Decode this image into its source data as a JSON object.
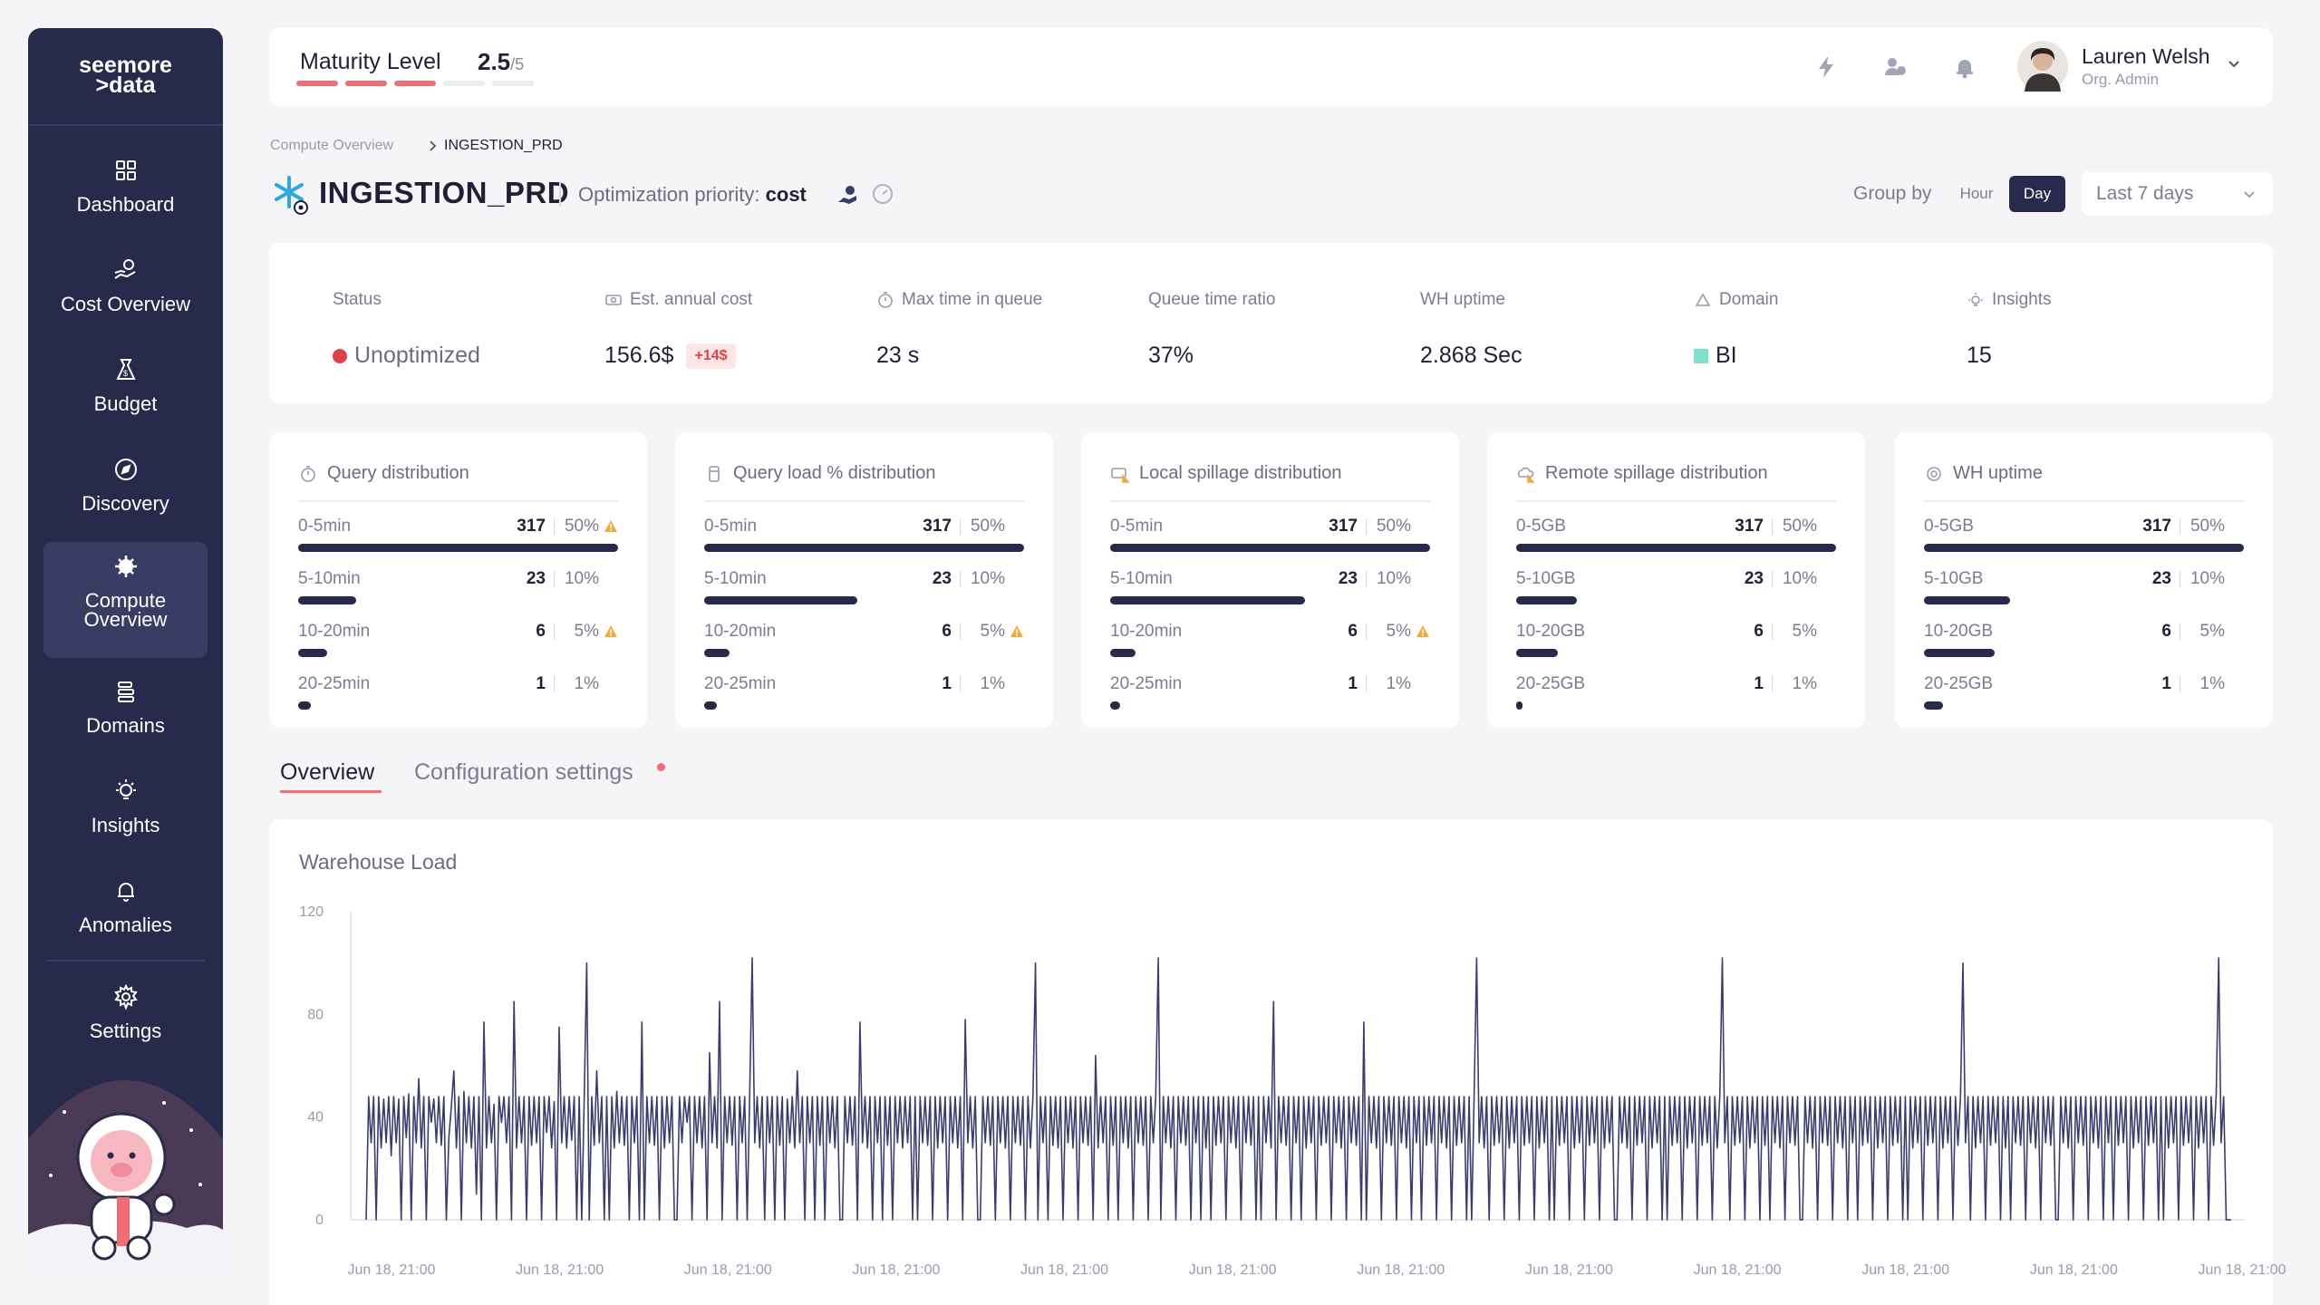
{
  "brand": {
    "line1": "seemore",
    "line2": ">data"
  },
  "sidebar": {
    "items": [
      {
        "label": "Dashboard",
        "icon": "dashboard-icon"
      },
      {
        "label": "Cost Overview",
        "icon": "cost-icon"
      },
      {
        "label": "Budget",
        "icon": "budget-icon"
      },
      {
        "label": "Discovery",
        "icon": "compass-icon"
      },
      {
        "label": "Compute Overview",
        "icon": "compute-icon",
        "active": true
      },
      {
        "label": "Domains",
        "icon": "domains-icon"
      },
      {
        "label": "Insights",
        "icon": "lightbulb-icon"
      },
      {
        "label": "Anomalies",
        "icon": "bell-icon"
      },
      {
        "label": "Settings",
        "icon": "gear-icon"
      }
    ]
  },
  "topbar": {
    "maturity_label": "Maturity Level",
    "maturity_value": "2.5",
    "maturity_max": "/5",
    "maturity_level": 2.5,
    "user_name": "Lauren Welsh",
    "user_role": "Org. Admin"
  },
  "breadcrumb": {
    "parent": "Compute Overview",
    "current": "INGESTION_PRD"
  },
  "header": {
    "title": "INGESTION_PRD",
    "priority_label": "Optimization priority:",
    "priority_value": "cost",
    "group_by_label": "Group by",
    "group_hour": "Hour",
    "group_day": "Day",
    "range": "Last 7 days"
  },
  "stats": [
    {
      "label": "Status",
      "value": "Unoptimized"
    },
    {
      "label": "Est. annual cost",
      "value": "156.6$",
      "badge": "+14$"
    },
    {
      "label": "Max time in queue",
      "value": "23 s"
    },
    {
      "label": "Queue time ratio",
      "value": "37%"
    },
    {
      "label": "WH uptime",
      "value": "2.868 Sec"
    },
    {
      "label": "Domain",
      "value": "BI"
    },
    {
      "label": "Insights",
      "value": "15"
    }
  ],
  "cards": [
    {
      "title": "Query distribution",
      "rows": [
        {
          "label": "0-5min",
          "count": "317",
          "pct": "50%",
          "warn": true,
          "fill": 1.0
        },
        {
          "label": "5-10min",
          "count": "23",
          "pct": "10%",
          "warn": false,
          "fill": 0.18
        },
        {
          "label": "10-20min",
          "count": "6",
          "pct": "5%",
          "warn": true,
          "fill": 0.09
        },
        {
          "label": "20-25min",
          "count": "1",
          "pct": "1%",
          "warn": false,
          "fill": 0.04
        }
      ]
    },
    {
      "title": "Query load % distribution",
      "rows": [
        {
          "label": "0-5min",
          "count": "317",
          "pct": "50%",
          "warn": false,
          "fill": 1.0
        },
        {
          "label": "5-10min",
          "count": "23",
          "pct": "10%",
          "warn": false,
          "fill": 0.48
        },
        {
          "label": "10-20min",
          "count": "6",
          "pct": "5%",
          "warn": true,
          "fill": 0.08
        },
        {
          "label": "20-25min",
          "count": "1",
          "pct": "1%",
          "warn": false,
          "fill": 0.04
        }
      ]
    },
    {
      "title": "Local spillage distribution",
      "rows": [
        {
          "label": "0-5min",
          "count": "317",
          "pct": "50%",
          "warn": false,
          "fill": 1.0
        },
        {
          "label": "5-10min",
          "count": "23",
          "pct": "10%",
          "warn": false,
          "fill": 0.61
        },
        {
          "label": "10-20min",
          "count": "6",
          "pct": "5%",
          "warn": true,
          "fill": 0.08
        },
        {
          "label": "20-25min",
          "count": "1",
          "pct": "1%",
          "warn": false,
          "fill": 0.03
        }
      ]
    },
    {
      "title": "Remote spillage distribution",
      "rows": [
        {
          "label": "0-5GB",
          "count": "317",
          "pct": "50%",
          "warn": false,
          "fill": 1.0
        },
        {
          "label": "5-10GB",
          "count": "23",
          "pct": "10%",
          "warn": false,
          "fill": 0.19
        },
        {
          "label": "10-20GB",
          "count": "6",
          "pct": "5%",
          "warn": false,
          "fill": 0.13
        },
        {
          "label": "20-25GB",
          "count": "1",
          "pct": "1%",
          "warn": false,
          "fill": 0.02
        }
      ]
    },
    {
      "title": "WH uptime",
      "rows": [
        {
          "label": "0-5GB",
          "count": "317",
          "pct": "50%",
          "warn": false,
          "fill": 1.0
        },
        {
          "label": "5-10GB",
          "count": "23",
          "pct": "10%",
          "warn": false,
          "fill": 0.27
        },
        {
          "label": "10-20GB",
          "count": "6",
          "pct": "5%",
          "warn": false,
          "fill": 0.22
        },
        {
          "label": "20-25GB",
          "count": "1",
          "pct": "1%",
          "warn": false,
          "fill": 0.06
        }
      ]
    }
  ],
  "tabs": {
    "overview": "Overview",
    "config": "Configuration settings"
  },
  "chart_data": {
    "type": "line",
    "title": "Warehouse Load",
    "ylim": [
      0,
      120
    ],
    "yticks": [
      0,
      40,
      80,
      120
    ],
    "x_tick_labels": [
      "Jun 18, 21:00",
      "Jun 18, 21:00",
      "Jun 18, 21:00",
      "Jun 18, 21:00",
      "Jun 18, 21:00",
      "Jun 18, 21:00",
      "Jun 18, 21:00",
      "Jun 18, 21:00",
      "Jun 18, 21:00",
      "Jun 18, 21:00",
      "Jun 18, 21:00",
      "Jun 18, 21:00"
    ],
    "series": [
      {
        "color": "#3b3c6e",
        "values": [
          0,
          48,
          30,
          48,
          0,
          48,
          28,
          47,
          30,
          48,
          25,
          48,
          30,
          47,
          0,
          48,
          32,
          49,
          0,
          48,
          30,
          55,
          28,
          48,
          0,
          48,
          38,
          47,
          30,
          48,
          29,
          48,
          0,
          32,
          44,
          58,
          28,
          48,
          0,
          50,
          30,
          48,
          28,
          48,
          10,
          48,
          0,
          77,
          28,
          48,
          30,
          45,
          0,
          48,
          38,
          48,
          30,
          48,
          0,
          85,
          28,
          48,
          30,
          48,
          0,
          48,
          29,
          48,
          30,
          48,
          0,
          48,
          34,
          48,
          28,
          46,
          0,
          75,
          30,
          48,
          28,
          48,
          31,
          48,
          0,
          48,
          0,
          48,
          100,
          0,
          48,
          29,
          58,
          30,
          48,
          0,
          48,
          0,
          48,
          28,
          50,
          30,
          48,
          29,
          48,
          0,
          48,
          30,
          48,
          0,
          77,
          0,
          48,
          30,
          48,
          29,
          48,
          0,
          48,
          28,
          48,
          30,
          48,
          0,
          0,
          48,
          30,
          48,
          38,
          48,
          0,
          48,
          30,
          48,
          28,
          48,
          0,
          65,
          30,
          48,
          28,
          85,
          0,
          48,
          30,
          48,
          29,
          48,
          0,
          48,
          30,
          48,
          0,
          48,
          102,
          30,
          48,
          28,
          48,
          0,
          48,
          30,
          48,
          0,
          48,
          29,
          48,
          0,
          47,
          30,
          48,
          28,
          58,
          30,
          48,
          0,
          48,
          30,
          48,
          0,
          48,
          29,
          48,
          0,
          48,
          30,
          48,
          28,
          48,
          0,
          0,
          48,
          30,
          48,
          29,
          48,
          0,
          77,
          30,
          48,
          28,
          48,
          0,
          48,
          30,
          48,
          0,
          48,
          29,
          48,
          0,
          48,
          30,
          48,
          28,
          48,
          30,
          48,
          0,
          48,
          0,
          48,
          30,
          48,
          29,
          48,
          0,
          48,
          28,
          48,
          30,
          48,
          0,
          48,
          30,
          48,
          28,
          48,
          0,
          78,
          30,
          48,
          28,
          48,
          0,
          0,
          48,
          30,
          48,
          29,
          48,
          0,
          48,
          30,
          48,
          28,
          48,
          0,
          48,
          30,
          48,
          29,
          48,
          0,
          48,
          28,
          48,
          100,
          0,
          48,
          30,
          48,
          0,
          48,
          29,
          48,
          28,
          48,
          0,
          48,
          30,
          48,
          28,
          48,
          0,
          48,
          30,
          48,
          29,
          48,
          0,
          64,
          28,
          48,
          30,
          48,
          0,
          48,
          29,
          48,
          0,
          48,
          30,
          48,
          28,
          48,
          0,
          48,
          30,
          48,
          29,
          48,
          0,
          48,
          30,
          48,
          102,
          0,
          48,
          30,
          48,
          28,
          48,
          0,
          48,
          30,
          48,
          29,
          48,
          0,
          48,
          30,
          48,
          0,
          48,
          28,
          48,
          0,
          48,
          29,
          48,
          30,
          48,
          0,
          48,
          30,
          48,
          28,
          48,
          0,
          48,
          30,
          48,
          29,
          48,
          0,
          48,
          0,
          48,
          30,
          48,
          28,
          85,
          0,
          48,
          30,
          48,
          29,
          48,
          0,
          48,
          30,
          48,
          0,
          48,
          28,
          48,
          30,
          48,
          0,
          48,
          29,
          48,
          30,
          48,
          0,
          48,
          30,
          48,
          28,
          48,
          0,
          48,
          30,
          48,
          29,
          48,
          0,
          77,
          0,
          48,
          30,
          48,
          28,
          48,
          0,
          48,
          30,
          48,
          29,
          48,
          0,
          48,
          30,
          48,
          28,
          48,
          0,
          48,
          30,
          48,
          0,
          48,
          29,
          48,
          30,
          48,
          0,
          48,
          30,
          48,
          28,
          48,
          0,
          48,
          29,
          48,
          30,
          48,
          0,
          48,
          0,
          48,
          102,
          30,
          48,
          28,
          48,
          0,
          48,
          29,
          48,
          30,
          48,
          0,
          48,
          28,
          48,
          30,
          48,
          0,
          48,
          29,
          48,
          30,
          48,
          0,
          48,
          28,
          48,
          30,
          48,
          0,
          48,
          0,
          48,
          29,
          48,
          30,
          48,
          0,
          48,
          28,
          48,
          30,
          48,
          0,
          48,
          29,
          48,
          30,
          48,
          0,
          48,
          28,
          48,
          30,
          48,
          0,
          0,
          48,
          30,
          48,
          28,
          48,
          0,
          48,
          29,
          48,
          30,
          48,
          0,
          48,
          28,
          48,
          30,
          48,
          0,
          48,
          0,
          48,
          29,
          48,
          30,
          48,
          0,
          48,
          28,
          48,
          30,
          48,
          0,
          48,
          29,
          48,
          30,
          48,
          0,
          48,
          28,
          48,
          102,
          30,
          48,
          0,
          48,
          29,
          48,
          30,
          48,
          0,
          48,
          28,
          48,
          30,
          48,
          0,
          48,
          29,
          48,
          0,
          48,
          30,
          48,
          28,
          48,
          0,
          48,
          30,
          48,
          29,
          48,
          0,
          0,
          48,
          30,
          48,
          28,
          48,
          0,
          48,
          30,
          48,
          29,
          48,
          0,
          48,
          30,
          48,
          28,
          48,
          0,
          48,
          30,
          48,
          0,
          48,
          29,
          48,
          30,
          48,
          0,
          48,
          28,
          48,
          30,
          48,
          0,
          48,
          29,
          48,
          30,
          48,
          0,
          48,
          0,
          48,
          28,
          48,
          30,
          48,
          0,
          48,
          29,
          48,
          30,
          48,
          0,
          48,
          28,
          48,
          30,
          48,
          0,
          48,
          29,
          48,
          100,
          30,
          48,
          0,
          48,
          28,
          48,
          30,
          48,
          0,
          48,
          29,
          48,
          30,
          48,
          0,
          48,
          28,
          48,
          0,
          48,
          30,
          48,
          29,
          48,
          0,
          48,
          30,
          48,
          28,
          48,
          0,
          48,
          30,
          48,
          29,
          48,
          0,
          0,
          48,
          30,
          48,
          28,
          48,
          0,
          48,
          30,
          48,
          29,
          48,
          0,
          48,
          30,
          48,
          28,
          48,
          0,
          48,
          30,
          48,
          0,
          48,
          29,
          48,
          30,
          48,
          0,
          48,
          28,
          48,
          30,
          48,
          0,
          48,
          29,
          48,
          30,
          48,
          0,
          48,
          0,
          48,
          28,
          48,
          30,
          48,
          0,
          48,
          29,
          48,
          30,
          48,
          0,
          48,
          28,
          48,
          30,
          48,
          0,
          48,
          29,
          48,
          102,
          30,
          48,
          0,
          0,
          0
        ]
      }
    ]
  }
}
